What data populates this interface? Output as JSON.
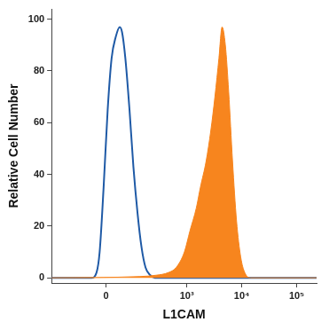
{
  "chart_data": {
    "type": "line",
    "xlabel": "L1CAM",
    "ylabel": "Relative Cell Number",
    "log": "x",
    "grid": false,
    "xlim": [
      -330,
      230000
    ],
    "xticks": [
      0,
      {
        "value": 1000,
        "label": "10³"
      },
      {
        "value": 10000,
        "label": "10⁴"
      },
      {
        "value": 100000,
        "label": "10⁵"
      }
    ],
    "ylim": [
      -2,
      104
    ],
    "yticks": [
      0,
      20,
      40,
      60,
      80,
      100
    ],
    "series": [
      {
        "type": "area",
        "color": "#f7851e",
        "x": [
          -330,
          133,
          272,
          456,
          640,
          904,
          1136,
          1490,
          1768,
          2244,
          2740,
          3250,
          3850,
          4386,
          5030,
          5780,
          6800,
          8040,
          9580,
          11360,
          14400,
          230000
        ],
        "values": [
          0,
          0.5,
          1,
          2,
          4,
          10,
          18,
          27,
          35,
          45,
          57,
          70,
          85,
          97,
          90,
          72,
          45,
          22,
          8,
          2,
          0,
          0
        ]
      },
      {
        "type": "line",
        "color": "#1f5aa6",
        "x": [
          -330,
          -44,
          -28,
          -18.5,
          -7,
          4.6,
          16,
          28,
          41,
          49,
          61,
          78,
          96,
          118,
          142,
          171,
          212,
          257,
          230000
        ],
        "values": [
          0,
          0,
          2,
          10,
          35,
          65,
          85,
          93,
          97,
          95,
          85,
          65,
          43,
          25,
          12,
          4,
          1,
          0,
          0
        ]
      }
    ]
  }
}
